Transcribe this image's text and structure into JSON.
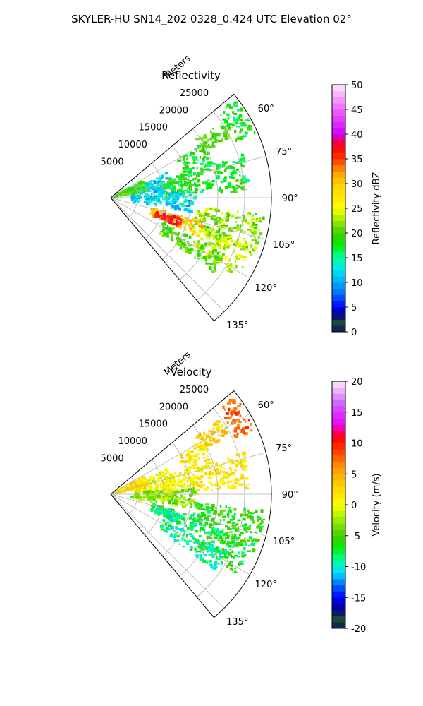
{
  "suptitle": "SKYLER-HU  SN14_202  0328_0.424 UTC Elevation 02°",
  "chart_data": [
    {
      "type": "heatmap",
      "projection": "polar-sector",
      "title": "Reflectivity",
      "range_label": "Meters",
      "range_ticks": [
        5000,
        10000,
        15000,
        20000,
        25000
      ],
      "range_max": 30000,
      "azimuth_range": [
        50,
        140
      ],
      "azimuth_ticks": [
        60,
        75,
        90,
        105,
        120,
        135
      ],
      "grid": true,
      "colorbar": {
        "label": "Reflectivity dBZ",
        "min": 0,
        "max": 50,
        "ticks": [
          0,
          5,
          10,
          15,
          20,
          25,
          30,
          35,
          40,
          45,
          50
        ],
        "stops": [
          {
            "v": 0,
            "c": "#0a1a5a"
          },
          {
            "v": 2,
            "c": "#1a4a3a"
          },
          {
            "v": 3.5,
            "c": "#00008b"
          },
          {
            "v": 5,
            "c": "#0000ff"
          },
          {
            "v": 7.5,
            "c": "#0066ff"
          },
          {
            "v": 10,
            "c": "#00aaff"
          },
          {
            "v": 12.5,
            "c": "#00e5ee"
          },
          {
            "v": 15,
            "c": "#00ffaa"
          },
          {
            "v": 17.5,
            "c": "#00ee00"
          },
          {
            "v": 20,
            "c": "#44cc00"
          },
          {
            "v": 22.5,
            "c": "#99ee00"
          },
          {
            "v": 25,
            "c": "#ffff00"
          },
          {
            "v": 30,
            "c": "#ffd000"
          },
          {
            "v": 32.5,
            "c": "#ff9900"
          },
          {
            "v": 35,
            "c": "#ff3300"
          },
          {
            "v": 37.5,
            "c": "#ff0000"
          },
          {
            "v": 40,
            "c": "#cc00ff"
          },
          {
            "v": 45,
            "c": "#ee66ff"
          },
          {
            "v": 50,
            "c": "#ffe6ff"
          }
        ]
      },
      "echo_regions": [
        {
          "az": [
            52,
            66
          ],
          "r": [
            25500,
            29500
          ],
          "value": 18
        },
        {
          "az": [
            56,
            64
          ],
          "r": [
            19000,
            25000
          ],
          "value": 20
        },
        {
          "az": [
            60,
            72
          ],
          "r": [
            14500,
            20000
          ],
          "value": 18
        },
        {
          "az": [
            66,
            86
          ],
          "r": [
            4000,
            12000
          ],
          "value": 12
        },
        {
          "az": [
            72,
            88
          ],
          "r": [
            10000,
            26000
          ],
          "value": 18
        },
        {
          "az": [
            62,
            80
          ],
          "r": [
            500,
            7000
          ],
          "value": 20
        },
        {
          "az": [
            86,
            100
          ],
          "r": [
            4000,
            16000
          ],
          "value": 12
        },
        {
          "az": [
            96,
            112
          ],
          "r": [
            16000,
            29000
          ],
          "value": 22
        },
        {
          "az": [
            104,
            114
          ],
          "r": [
            8000,
            18000
          ],
          "value": 30
        },
        {
          "az": [
            106,
            113
          ],
          "r": [
            9000,
            14000
          ],
          "value": 36
        },
        {
          "az": [
            108,
            122
          ],
          "r": [
            18000,
            28000
          ],
          "value": 24
        },
        {
          "az": [
            116,
            126
          ],
          "r": [
            11000,
            24000
          ],
          "value": 20
        }
      ]
    },
    {
      "type": "heatmap",
      "projection": "polar-sector",
      "title": "Velocity",
      "range_label": "Meters",
      "range_ticks": [
        5000,
        10000,
        15000,
        20000,
        25000
      ],
      "range_max": 30000,
      "azimuth_range": [
        50,
        140
      ],
      "azimuth_ticks": [
        60,
        75,
        90,
        105,
        120,
        135
      ],
      "grid": true,
      "colorbar": {
        "label": "Velocity (m/s)",
        "min": -20,
        "max": 20,
        "ticks": [
          -20,
          -15,
          -10,
          -5,
          0,
          5,
          10,
          15,
          20
        ],
        "stops": [
          {
            "v": -20,
            "c": "#0a1a5a"
          },
          {
            "v": -18.5,
            "c": "#1a4a3a"
          },
          {
            "v": -17,
            "c": "#00008b"
          },
          {
            "v": -15,
            "c": "#0000ff"
          },
          {
            "v": -13,
            "c": "#0066ff"
          },
          {
            "v": -11,
            "c": "#00ddff"
          },
          {
            "v": -9,
            "c": "#00ffaa"
          },
          {
            "v": -7,
            "c": "#00ee00"
          },
          {
            "v": -5,
            "c": "#44cc00"
          },
          {
            "v": -2.5,
            "c": "#99ee00"
          },
          {
            "v": 0,
            "c": "#ffff00"
          },
          {
            "v": 3,
            "c": "#ffd000"
          },
          {
            "v": 6,
            "c": "#ff9900"
          },
          {
            "v": 9,
            "c": "#ff3300"
          },
          {
            "v": 11,
            "c": "#ff0000"
          },
          {
            "v": 13,
            "c": "#ee00ff"
          },
          {
            "v": 16,
            "c": "#cc55ff"
          },
          {
            "v": 20,
            "c": "#ffe6ff"
          }
        ]
      },
      "echo_regions": [
        {
          "az": [
            52,
            66
          ],
          "r": [
            25500,
            29500
          ],
          "value": 8
        },
        {
          "az": [
            56,
            64
          ],
          "r": [
            19000,
            25000
          ],
          "value": 3
        },
        {
          "az": [
            60,
            72
          ],
          "r": [
            14500,
            20000
          ],
          "value": 1
        },
        {
          "az": [
            66,
            86
          ],
          "r": [
            4000,
            12000
          ],
          "value": 0
        },
        {
          "az": [
            72,
            88
          ],
          "r": [
            10000,
            26000
          ],
          "value": 1
        },
        {
          "az": [
            62,
            80
          ],
          "r": [
            500,
            7000
          ],
          "value": 2
        },
        {
          "az": [
            86,
            100
          ],
          "r": [
            4000,
            16000
          ],
          "value": -3
        },
        {
          "az": [
            96,
            112
          ],
          "r": [
            16000,
            29000
          ],
          "value": -6
        },
        {
          "az": [
            104,
            114
          ],
          "r": [
            8000,
            18000
          ],
          "value": -8
        },
        {
          "az": [
            106,
            113
          ],
          "r": [
            9000,
            14000
          ],
          "value": -9
        },
        {
          "az": [
            108,
            122
          ],
          "r": [
            18000,
            28000
          ],
          "value": -7
        },
        {
          "az": [
            116,
            126
          ],
          "r": [
            11000,
            24000
          ],
          "value": -9
        }
      ]
    }
  ]
}
